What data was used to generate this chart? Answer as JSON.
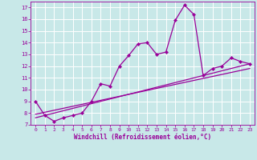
{
  "xlabel": "Windchill (Refroidissement éolien,°C)",
  "bg_color": "#c8e8e8",
  "line_color": "#990099",
  "xlim": [
    -0.5,
    23.5
  ],
  "ylim": [
    7,
    17.5
  ],
  "yticks": [
    7,
    8,
    9,
    10,
    11,
    12,
    13,
    14,
    15,
    16,
    17
  ],
  "xticks": [
    0,
    1,
    2,
    3,
    4,
    5,
    6,
    7,
    8,
    9,
    10,
    11,
    12,
    13,
    14,
    15,
    16,
    17,
    18,
    19,
    20,
    21,
    22,
    23
  ],
  "main_x": [
    0,
    1,
    2,
    3,
    4,
    5,
    6,
    7,
    8,
    9,
    10,
    11,
    12,
    13,
    14,
    15,
    16,
    17,
    18,
    19,
    20,
    21,
    22,
    23
  ],
  "main_y": [
    9.0,
    7.8,
    7.3,
    7.6,
    7.8,
    8.0,
    9.0,
    10.5,
    10.3,
    12.0,
    12.9,
    13.9,
    14.0,
    13.0,
    13.2,
    15.9,
    17.2,
    16.4,
    11.2,
    11.8,
    12.0,
    12.7,
    12.4,
    12.2
  ],
  "line2_x": [
    0,
    23
  ],
  "line2_y": [
    7.6,
    12.2
  ],
  "line3_x": [
    0,
    23
  ],
  "line3_y": [
    7.9,
    11.8
  ]
}
